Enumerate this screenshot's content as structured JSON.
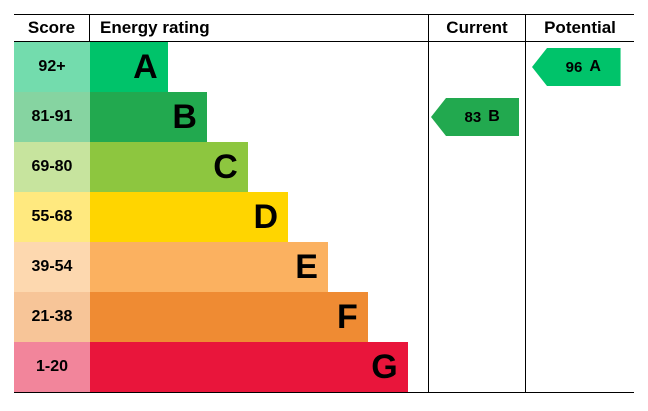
{
  "chart_data": {
    "type": "bar",
    "title": "Energy rating (EPC style chart)",
    "columns": {
      "score": "Score",
      "energy_rating": "Energy rating",
      "current": "Current",
      "potential": "Potential"
    },
    "bands": [
      {
        "score": "92+",
        "letter": "A",
        "color": "#00c36a",
        "tint": "#73dcad",
        "width_pct": 23.0
      },
      {
        "score": "81-91",
        "letter": "B",
        "color": "#22a94f",
        "tint": "#86d4a1",
        "width_pct": 34.6
      },
      {
        "score": "69-80",
        "letter": "C",
        "color": "#8dc63f",
        "tint": "#c7e49e",
        "width_pct": 46.7
      },
      {
        "score": "55-68",
        "letter": "D",
        "color": "#ffd500",
        "tint": "#ffe97f",
        "width_pct": 58.6
      },
      {
        "score": "39-54",
        "letter": "E",
        "color": "#fbb160",
        "tint": "#fdd8af",
        "width_pct": 70.4
      },
      {
        "score": "21-38",
        "letter": "F",
        "color": "#ef8b33",
        "tint": "#f7c598",
        "width_pct": 82.2
      },
      {
        "score": "1-20",
        "letter": "G",
        "color": "#e9153b",
        "tint": "#f2859b",
        "width_pct": 94.0
      }
    ],
    "current": {
      "value": "83",
      "letter": "B",
      "row": 1,
      "color": "#22a94f"
    },
    "potential": {
      "value": "96",
      "letter": "A",
      "row": 0,
      "color": "#00c36a"
    }
  }
}
